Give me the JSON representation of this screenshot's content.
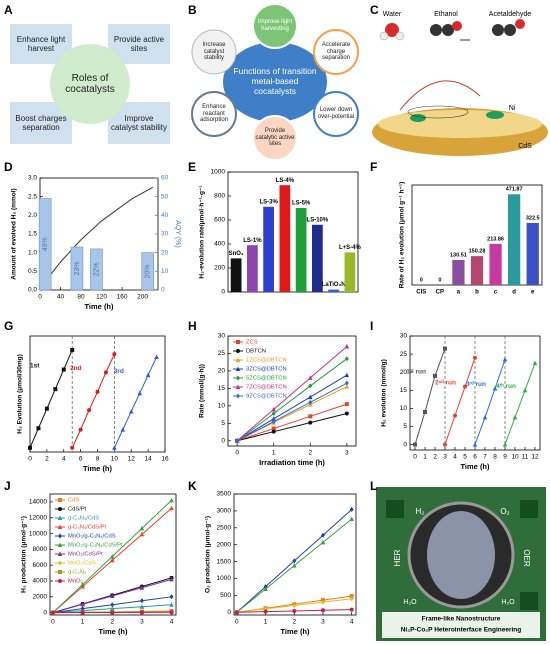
{
  "letters": [
    "A",
    "B",
    "C",
    "D",
    "E",
    "F",
    "G",
    "H",
    "I",
    "J",
    "K",
    "L"
  ],
  "diagrams": {
    "A": {
      "center": "Roles of cocatalysts",
      "items": [
        "Enhance light harvest",
        "Provide active sites",
        "Boost charges separation",
        "Improve catalyst stability"
      ]
    },
    "B": {
      "center": "Functions of transition metal-based cocatalysts",
      "items": [
        "Improve light harvesting",
        "Accelerate charge separation",
        "Lower down over-potential",
        "Provide catalytic active sites",
        "Enhance reactant adsorption",
        "Increase catalyst stability"
      ]
    },
    "C": {
      "labels": [
        "Water",
        "Ethanol",
        "Acetaldehyde",
        "CdS",
        "Ni"
      ]
    },
    "L": {
      "labels": [
        "H₂",
        "O₂",
        "HER",
        "OER",
        "H₂O",
        "H₂O",
        "Frame-like Nanostructure",
        "Ni₂P-Co₂P Heterointerface Engineering"
      ]
    }
  },
  "chart_data": [
    {
      "type": "combo",
      "xlabel": "Time (h)",
      "ylabel": "Amount of evolved H₂ (mmol)",
      "y2label": "AQY (%)",
      "xlim": [
        0,
        230
      ],
      "xticks": [
        0,
        40,
        80,
        120,
        160,
        200
      ],
      "ylim": [
        0,
        3
      ],
      "yticks": [
        {
          "value": 0,
          "label": "0.0"
        },
        0.5,
        {
          "value": 1,
          "label": "1.0"
        },
        1.5,
        {
          "value": 2,
          "label": "2.0"
        },
        2.5,
        {
          "value": 3,
          "label": "3.0"
        }
      ],
      "y2lim": [
        0,
        60
      ],
      "y2ticks": [
        0,
        10,
        20,
        30,
        40,
        50,
        60
      ],
      "series": [
        {
          "color": "#333333",
          "marker": "none",
          "x": [
            0,
            20,
            40,
            60,
            80,
            100,
            120,
            140,
            160,
            180,
            200,
            220
          ],
          "values": [
            0,
            0.4,
            0.75,
            1.05,
            1.35,
            1.6,
            1.85,
            2.05,
            2.25,
            2.45,
            2.6,
            2.75
          ]
        },
        {
          "color": "#a9c6e8",
          "axis": "y2",
          "x": [
            10,
            72,
            110,
            210
          ],
          "values": [
            49,
            23,
            22,
            20
          ],
          "value_labels": [
            "49%",
            "23%",
            "22%",
            "20%"
          ]
        }
      ]
    },
    {
      "type": "bar",
      "ylabel": "H₂-evolution rate/μmol·h⁻¹·g⁻¹",
      "category_labels": "above",
      "categories": [
        "SnO₂",
        "LS-1%",
        "LS-3%",
        "LS-4%",
        "LS-5%",
        "LS-10%",
        "LaTiO₂N",
        "L+S-4%"
      ],
      "values": [
        280,
        390,
        710,
        890,
        700,
        560,
        20,
        330
      ],
      "colors": [
        "#111111",
        "#8e44ad",
        "#2e3fd0",
        "#e0191d",
        "#1f9e3a",
        "#1e2c8f",
        "#3060d8",
        "#9ab82a"
      ],
      "ylim": [
        0,
        1000
      ],
      "yticks": [
        0,
        200,
        400,
        600,
        800,
        1000
      ]
    },
    {
      "type": "bar",
      "ylabel": "Rate of H₂ evolution (μmol g⁻¹ h⁻¹)",
      "category_labels": "below",
      "show_values": true,
      "categories": [
        "CIS",
        "CP",
        "a",
        "b",
        "c",
        "d",
        "e"
      ],
      "values": [
        0,
        0,
        130.51,
        150.28,
        213.86,
        471.87,
        322.5
      ],
      "colors": [
        "#7b3fa0",
        "#e07b6a",
        "#8b4f9f",
        "#b5486e",
        "#c43aa0",
        "#2a9a9a",
        "#3a4fc8"
      ],
      "ylim": [
        0,
        520
      ]
    },
    {
      "type": "line",
      "xlabel": "Time (h)",
      "ylabel": "H₂ Evolution (μmol/30mg)",
      "legend": "inline",
      "xlim": [
        0,
        16
      ],
      "xticks": [
        0,
        2,
        4,
        6,
        8,
        10,
        12,
        14,
        16
      ],
      "ylim": [
        -3,
        80
      ],
      "vlines": [
        5,
        10
      ],
      "series": [
        {
          "name": "1st",
          "color": "#111111",
          "marker": "square",
          "x": [
            0,
            1,
            2,
            3,
            4,
            5
          ],
          "values": [
            0,
            14,
            28,
            42,
            56,
            70
          ]
        },
        {
          "name": "2nd",
          "color": "#e0191d",
          "marker": "circle",
          "x": [
            5,
            6,
            7,
            8,
            9,
            10
          ],
          "values": [
            0,
            13,
            27,
            40,
            54,
            67
          ]
        },
        {
          "name": "3rd",
          "color": "#2e5fd0",
          "marker": "triangle",
          "x": [
            10,
            11,
            12,
            13,
            14,
            15
          ],
          "values": [
            0,
            13,
            26,
            39,
            52,
            65
          ]
        }
      ]
    },
    {
      "type": "line",
      "xlabel": "Irradiation time (h)",
      "ylabel": "Rate (mmol/(g·h))",
      "legend": "upper left",
      "x": [
        0,
        1,
        2,
        3
      ],
      "xlim": [
        -0.25,
        3.25
      ],
      "xticks": [
        0,
        1,
        2,
        3
      ],
      "ylim": [
        -1.5,
        30
      ],
      "yticks": [
        0,
        5,
        10,
        15,
        20,
        25,
        30
      ],
      "series": [
        {
          "name": "ZCS",
          "color": "#e8412c",
          "marker": "square",
          "values": [
            0,
            3.5,
            7,
            10.5
          ]
        },
        {
          "name": "DBTCN",
          "color": "#111111",
          "marker": "circle",
          "values": [
            0,
            2.6,
            5.2,
            7.8
          ]
        },
        {
          "name": "1ZCS@DBTCN",
          "color": "#f0a020",
          "marker": "triangle",
          "values": [
            0,
            5.2,
            10.4,
            15.5
          ]
        },
        {
          "name": "3ZCS@DBTCN",
          "color": "#2040c0",
          "marker": "triangle",
          "values": [
            0,
            6.3,
            12.5,
            18.8
          ]
        },
        {
          "name": "5ZCS@DBTCN",
          "color": "#1f9e3a",
          "marker": "diamond",
          "values": [
            0,
            7.8,
            15.7,
            23.5
          ]
        },
        {
          "name": "7ZCS@DBTCN",
          "color": "#d02b8a",
          "marker": "triangle",
          "values": [
            0,
            9,
            18,
            27
          ]
        },
        {
          "name": "9ZCS@DBTCN",
          "color": "#3a6ad8",
          "marker": "diamond",
          "values": [
            0,
            5.5,
            11,
            16.5
          ]
        }
      ]
    },
    {
      "type": "line",
      "xlabel": "Time (h)",
      "ylabel": "H₂ evolution (mmol/g)",
      "legend": "inline",
      "xlim": [
        -0.5,
        12.5
      ],
      "xticks": [
        0,
        1,
        2,
        3,
        4,
        5,
        6,
        7,
        8,
        9,
        10,
        11,
        12
      ],
      "ylim": [
        -1.5,
        30
      ],
      "yticks": [
        0,
        5,
        10,
        15,
        20,
        25,
        30
      ],
      "vlines": [
        3,
        6,
        9
      ],
      "series": [
        {
          "name": "1ˢᵗ run",
          "color": "#555555",
          "marker": "square",
          "x": [
            0,
            1,
            2,
            3
          ],
          "values": [
            0,
            9,
            19,
            26.5
          ]
        },
        {
          "name": "2ⁿᵈ run",
          "color": "#e8412c",
          "marker": "circle",
          "x": [
            3,
            4,
            5,
            6
          ],
          "values": [
            0,
            8,
            16,
            24
          ]
        },
        {
          "name": "3ʳᵈ run",
          "color": "#2e6fd8",
          "marker": "triangle",
          "x": [
            6,
            7,
            8,
            9
          ],
          "values": [
            0,
            7.5,
            15.5,
            23.5
          ]
        },
        {
          "name": "4ᵗʰ run",
          "color": "#2fae4a",
          "marker": "triangle",
          "x": [
            9,
            10,
            11,
            12
          ],
          "values": [
            0,
            7.5,
            15,
            22.5
          ]
        }
      ]
    },
    {
      "type": "line",
      "xlabel": "Time (h)",
      "ylabel": "H₂ production (μmol·g⁻¹)",
      "legend": "upper left",
      "x": [
        0,
        1,
        2,
        3,
        4
      ],
      "xlim": [
        -0.1,
        4.15
      ],
      "xticks": [
        0,
        1,
        2,
        3,
        4
      ],
      "ylim": [
        -300,
        15000
      ],
      "yticks": [
        0,
        2000,
        4000,
        6000,
        8000,
        10000,
        12000,
        14000
      ],
      "series": [
        {
          "name": "CdS",
          "color": "#f07818",
          "marker": "square",
          "values": [
            0,
            50,
            100,
            150,
            200
          ]
        },
        {
          "name": "CdS/Pt",
          "color": "#111111",
          "marker": "circle",
          "values": [
            0,
            1100,
            2200,
            3300,
            4400
          ]
        },
        {
          "name": "g-C₃N₄/CdS",
          "color": "#20a0a0",
          "marker": "triangle",
          "values": [
            0,
            250,
            500,
            750,
            1000
          ]
        },
        {
          "name": "g-C₃N₄/CdS/Pt",
          "color": "#e8412c",
          "marker": "triangle",
          "values": [
            0,
            3300,
            6600,
            9900,
            13200
          ]
        },
        {
          "name": "MnO₂/g-C₃N₄/CdS",
          "color": "#2040b0",
          "marker": "diamond",
          "values": [
            0,
            500,
            1000,
            1500,
            2000
          ]
        },
        {
          "name": "MnO₂/g-C₃N₄/CdS/Pt",
          "color": "#3aa040",
          "marker": "triangle",
          "values": [
            0,
            3550,
            7100,
            10650,
            14200
          ]
        },
        {
          "name": "MnO₂/CdS/Pt",
          "color": "#8030a0",
          "marker": "triangle",
          "values": [
            0,
            1050,
            2100,
            3150,
            4200
          ]
        },
        {
          "name": "MnO₂/CdS",
          "color": "#e0c020",
          "marker": "diamond",
          "values": [
            0,
            30,
            60,
            90,
            120
          ]
        },
        {
          "name": "g-C₃N₄",
          "color": "#a0a020",
          "marker": "square",
          "values": [
            0,
            20,
            40,
            60,
            80
          ]
        },
        {
          "name": "MnO₂",
          "color": "#c02050",
          "marker": "circle",
          "values": [
            0,
            10,
            20,
            30,
            40
          ]
        }
      ]
    },
    {
      "type": "line",
      "xlabel": "Time (h)",
      "ylabel": "O₂ production (μmol·g⁻¹)",
      "x": [
        0,
        1,
        2,
        3,
        4
      ],
      "xlim": [
        -0.1,
        4.15
      ],
      "xticks": [
        0,
        1,
        2,
        3,
        4
      ],
      "ylim": [
        -80,
        3500
      ],
      "yticks": [
        0,
        500,
        1000,
        1500,
        2000,
        2500,
        3000,
        3500
      ],
      "series": [
        {
          "color": "#2040b0",
          "marker": "diamond",
          "values": [
            0,
            760,
            1520,
            2280,
            3040
          ]
        },
        {
          "color": "#3aa040",
          "marker": "triangle",
          "values": [
            0,
            690,
            1380,
            2070,
            2760
          ]
        },
        {
          "color": "#f07818",
          "marker": "square",
          "values": [
            0,
            120,
            240,
            360,
            480
          ]
        },
        {
          "color": "#e0c020",
          "marker": "diamond",
          "values": [
            0,
            100,
            200,
            300,
            400
          ]
        },
        {
          "color": "#c02050",
          "marker": "circle",
          "values": [
            0,
            20,
            40,
            60,
            80
          ]
        }
      ]
    }
  ]
}
